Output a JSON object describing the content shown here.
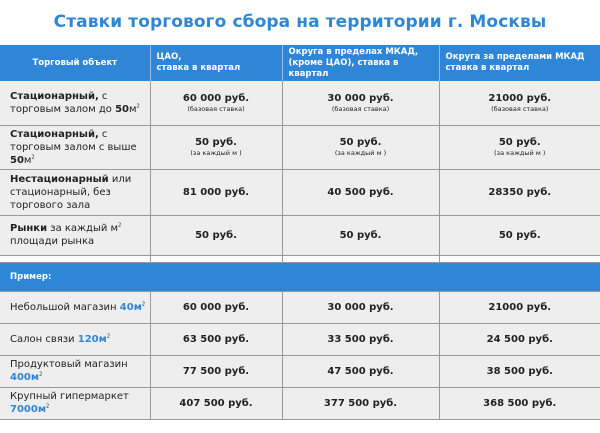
{
  "title": "Ставки торгового сбора на территории г. Москвы",
  "headers": {
    "object": "Торговый объект",
    "cao": [
      "ЦАО,",
      "ставка в квартал"
    ],
    "mkad": [
      "Округа в пределах МКАД,",
      "(кроме ЦАО), ставка в квартал"
    ],
    "outside": [
      "Округа за пределами МКАД",
      "ставка в квартал"
    ]
  },
  "rows": [
    {
      "name_bold": "Стационарный,",
      "name_rest_1": " с торговым залом до ",
      "name_num": "50",
      "name_unit": "м",
      "name_sup": "2",
      "values": [
        "60 000 руб.",
        "30 000 руб.",
        "21000 руб."
      ],
      "subs": [
        "(базовая ставка)",
        "(базовая ставка)",
        "(базовая ставка)"
      ]
    },
    {
      "name_bold": "Стационарный,",
      "name_rest_1": " с торговым залом с выше ",
      "name_num": "50",
      "name_unit": "м",
      "name_sup": "2",
      "values": [
        "50 руб.",
        "50 руб.",
        "50 руб."
      ],
      "subs": [
        "(за каждый м )",
        "(за каждый м )",
        "(за каждый м )"
      ]
    },
    {
      "name_bold": "Нестационарный",
      "name_rest_1": " или стационарный, без торгового зала",
      "values": [
        "81 000 руб.",
        "40 500 руб.",
        "28350 руб."
      ]
    },
    {
      "name_bold": "Рынки",
      "name_rest_1": " за каждый м",
      "name_sup": "2",
      "name_rest_2": " площади рынка",
      "values": [
        "50 руб.",
        "50 руб.",
        "50 руб."
      ]
    }
  ],
  "example_label": "Пример:",
  "examples": [
    {
      "name": "Небольшой магазин ",
      "area": "40м",
      "sup": "2",
      "values": [
        "60 000 руб.",
        "30 000 руб.",
        "21000 руб."
      ]
    },
    {
      "name": "Салон связи ",
      "area": "120м",
      "sup": "2",
      "values": [
        "63 500 руб.",
        "33 500 руб.",
        "24 500 руб."
      ]
    },
    {
      "name": "Продуктовый магазин ",
      "area": "400м",
      "sup": "2",
      "values": [
        "77 500 руб.",
        "47 500 руб.",
        "38 500 руб."
      ]
    },
    {
      "name": "Крупный гипермаркет ",
      "area": "7000м",
      "sup": "2",
      "values": [
        "407 500 руб.",
        "377 500 руб.",
        "368 500 руб."
      ]
    }
  ],
  "colors": {
    "accent": "#2f86d6",
    "row_bg": "#eeeeee",
    "grid": "#9a9a9a"
  }
}
